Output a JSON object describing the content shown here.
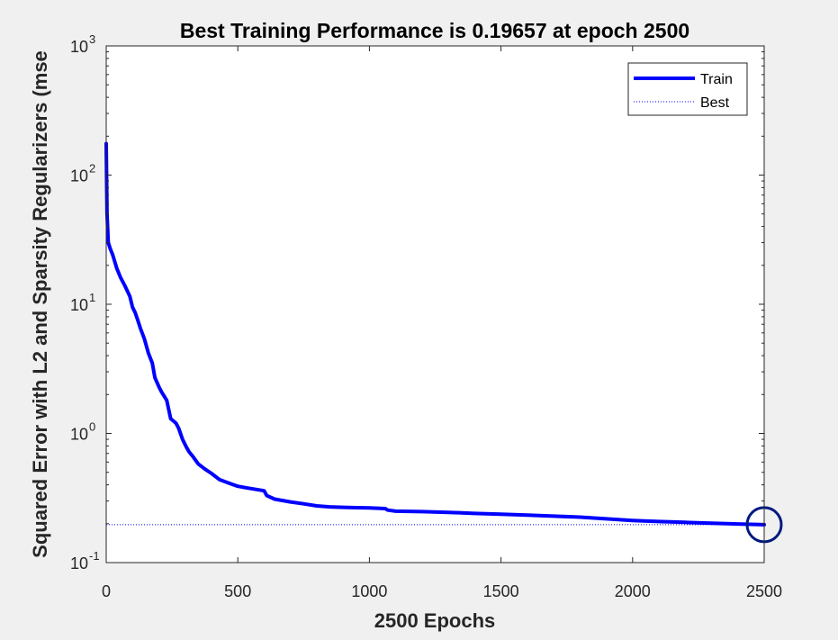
{
  "chart_data": {
    "type": "line",
    "title": "Best Training Performance is 0.19657 at epoch 2500",
    "xlabel": "2500 Epochs",
    "ylabel": "Squared Error with L2 and Sparsity Regularizers  (mse",
    "xlim": [
      0,
      2500
    ],
    "ylim": [
      0.1,
      1000
    ],
    "yscale": "log",
    "grid": false,
    "legend_position": "top-right",
    "x_ticks": [
      0,
      500,
      1000,
      1500,
      2000,
      2500
    ],
    "x_tick_labels": [
      "0",
      "500",
      "1000",
      "1500",
      "2000",
      "2500"
    ],
    "y_ticks": [
      {
        "value": 0.1,
        "base": "10",
        "exp": "-1"
      },
      {
        "value": 1,
        "base": "10",
        "exp": "0"
      },
      {
        "value": 10,
        "base": "10",
        "exp": "1"
      },
      {
        "value": 100,
        "base": "10",
        "exp": "2"
      },
      {
        "value": 1000,
        "base": "10",
        "exp": "3"
      }
    ],
    "series": [
      {
        "name": "Train",
        "color": "#0000ff",
        "style": "solid",
        "x": [
          0,
          3,
          8,
          15,
          25,
          40,
          55,
          70,
          90,
          100,
          110,
          120,
          130,
          145,
          160,
          175,
          185,
          200,
          210,
          220,
          230,
          245,
          255,
          265,
          275,
          290,
          305,
          315,
          330,
          350,
          375,
          400,
          430,
          470,
          500,
          530,
          600,
          610,
          640,
          700,
          750,
          800,
          850,
          900,
          950,
          1000,
          1060,
          1070,
          1100,
          1200,
          1300,
          1350,
          1400,
          1500,
          1600,
          1700,
          1800,
          1900,
          2000,
          2100,
          2200,
          2300,
          2400,
          2500
        ],
        "y": [
          175,
          50,
          30,
          27,
          24,
          19,
          16,
          14,
          11.5,
          9.5,
          8.6,
          7.5,
          6.5,
          5.4,
          4.2,
          3.5,
          2.7,
          2.3,
          2.1,
          1.95,
          1.8,
          1.3,
          1.25,
          1.2,
          1.1,
          0.9,
          0.78,
          0.72,
          0.66,
          0.58,
          0.53,
          0.49,
          0.44,
          0.41,
          0.39,
          0.38,
          0.36,
          0.33,
          0.31,
          0.295,
          0.285,
          0.275,
          0.27,
          0.268,
          0.266,
          0.265,
          0.262,
          0.255,
          0.25,
          0.248,
          0.245,
          0.243,
          0.24,
          0.237,
          0.233,
          0.229,
          0.225,
          0.218,
          0.212,
          0.208,
          0.205,
          0.202,
          0.199,
          0.19657
        ]
      },
      {
        "name": "Best",
        "color": "#0000ff",
        "style": "dotted",
        "horizontal_value": 0.19657,
        "vertical_value": 2500
      }
    ],
    "best_marker": {
      "x": 2500,
      "y": 0.19657,
      "color": "#001a80"
    }
  }
}
